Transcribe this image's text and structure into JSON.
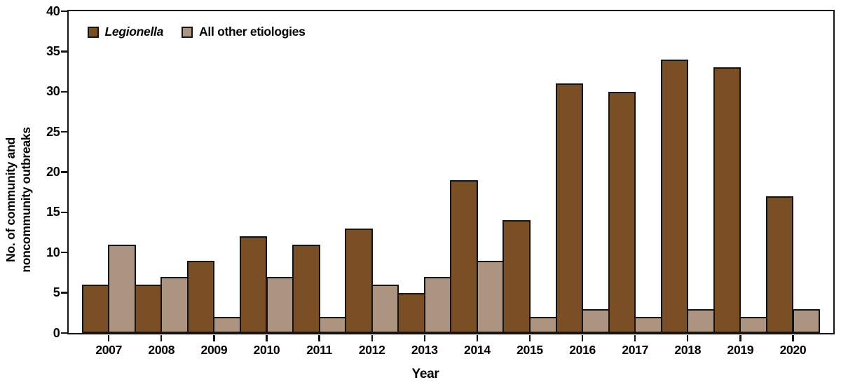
{
  "chart_data": {
    "type": "bar",
    "title": "",
    "xlabel": "Year",
    "ylabel": "No. of community and\nnoncommunity outbreaks",
    "categories": [
      "2007",
      "2008",
      "2009",
      "2010",
      "2011",
      "2012",
      "2013",
      "2014",
      "2015",
      "2016",
      "2017",
      "2018",
      "2019",
      "2020"
    ],
    "series": [
      {
        "name": "Legionella",
        "italic": true,
        "color": "#7A4F26",
        "values": [
          6,
          6,
          9,
          12,
          11,
          13,
          5,
          19,
          14,
          31,
          30,
          34,
          33,
          17
        ]
      },
      {
        "name": "All other etiologies",
        "italic": false,
        "color": "#AC9480",
        "values": [
          11,
          7,
          2,
          7,
          2,
          6,
          7,
          9,
          2,
          3,
          2,
          3,
          2,
          3
        ]
      }
    ],
    "ylim": [
      0,
      40
    ],
    "yticks": [
      0,
      5,
      10,
      15,
      20,
      25,
      30,
      35,
      40
    ],
    "grid": false,
    "legend_position": "top-left",
    "bar_outline_color": "#141414",
    "axis_color": "#141414"
  }
}
